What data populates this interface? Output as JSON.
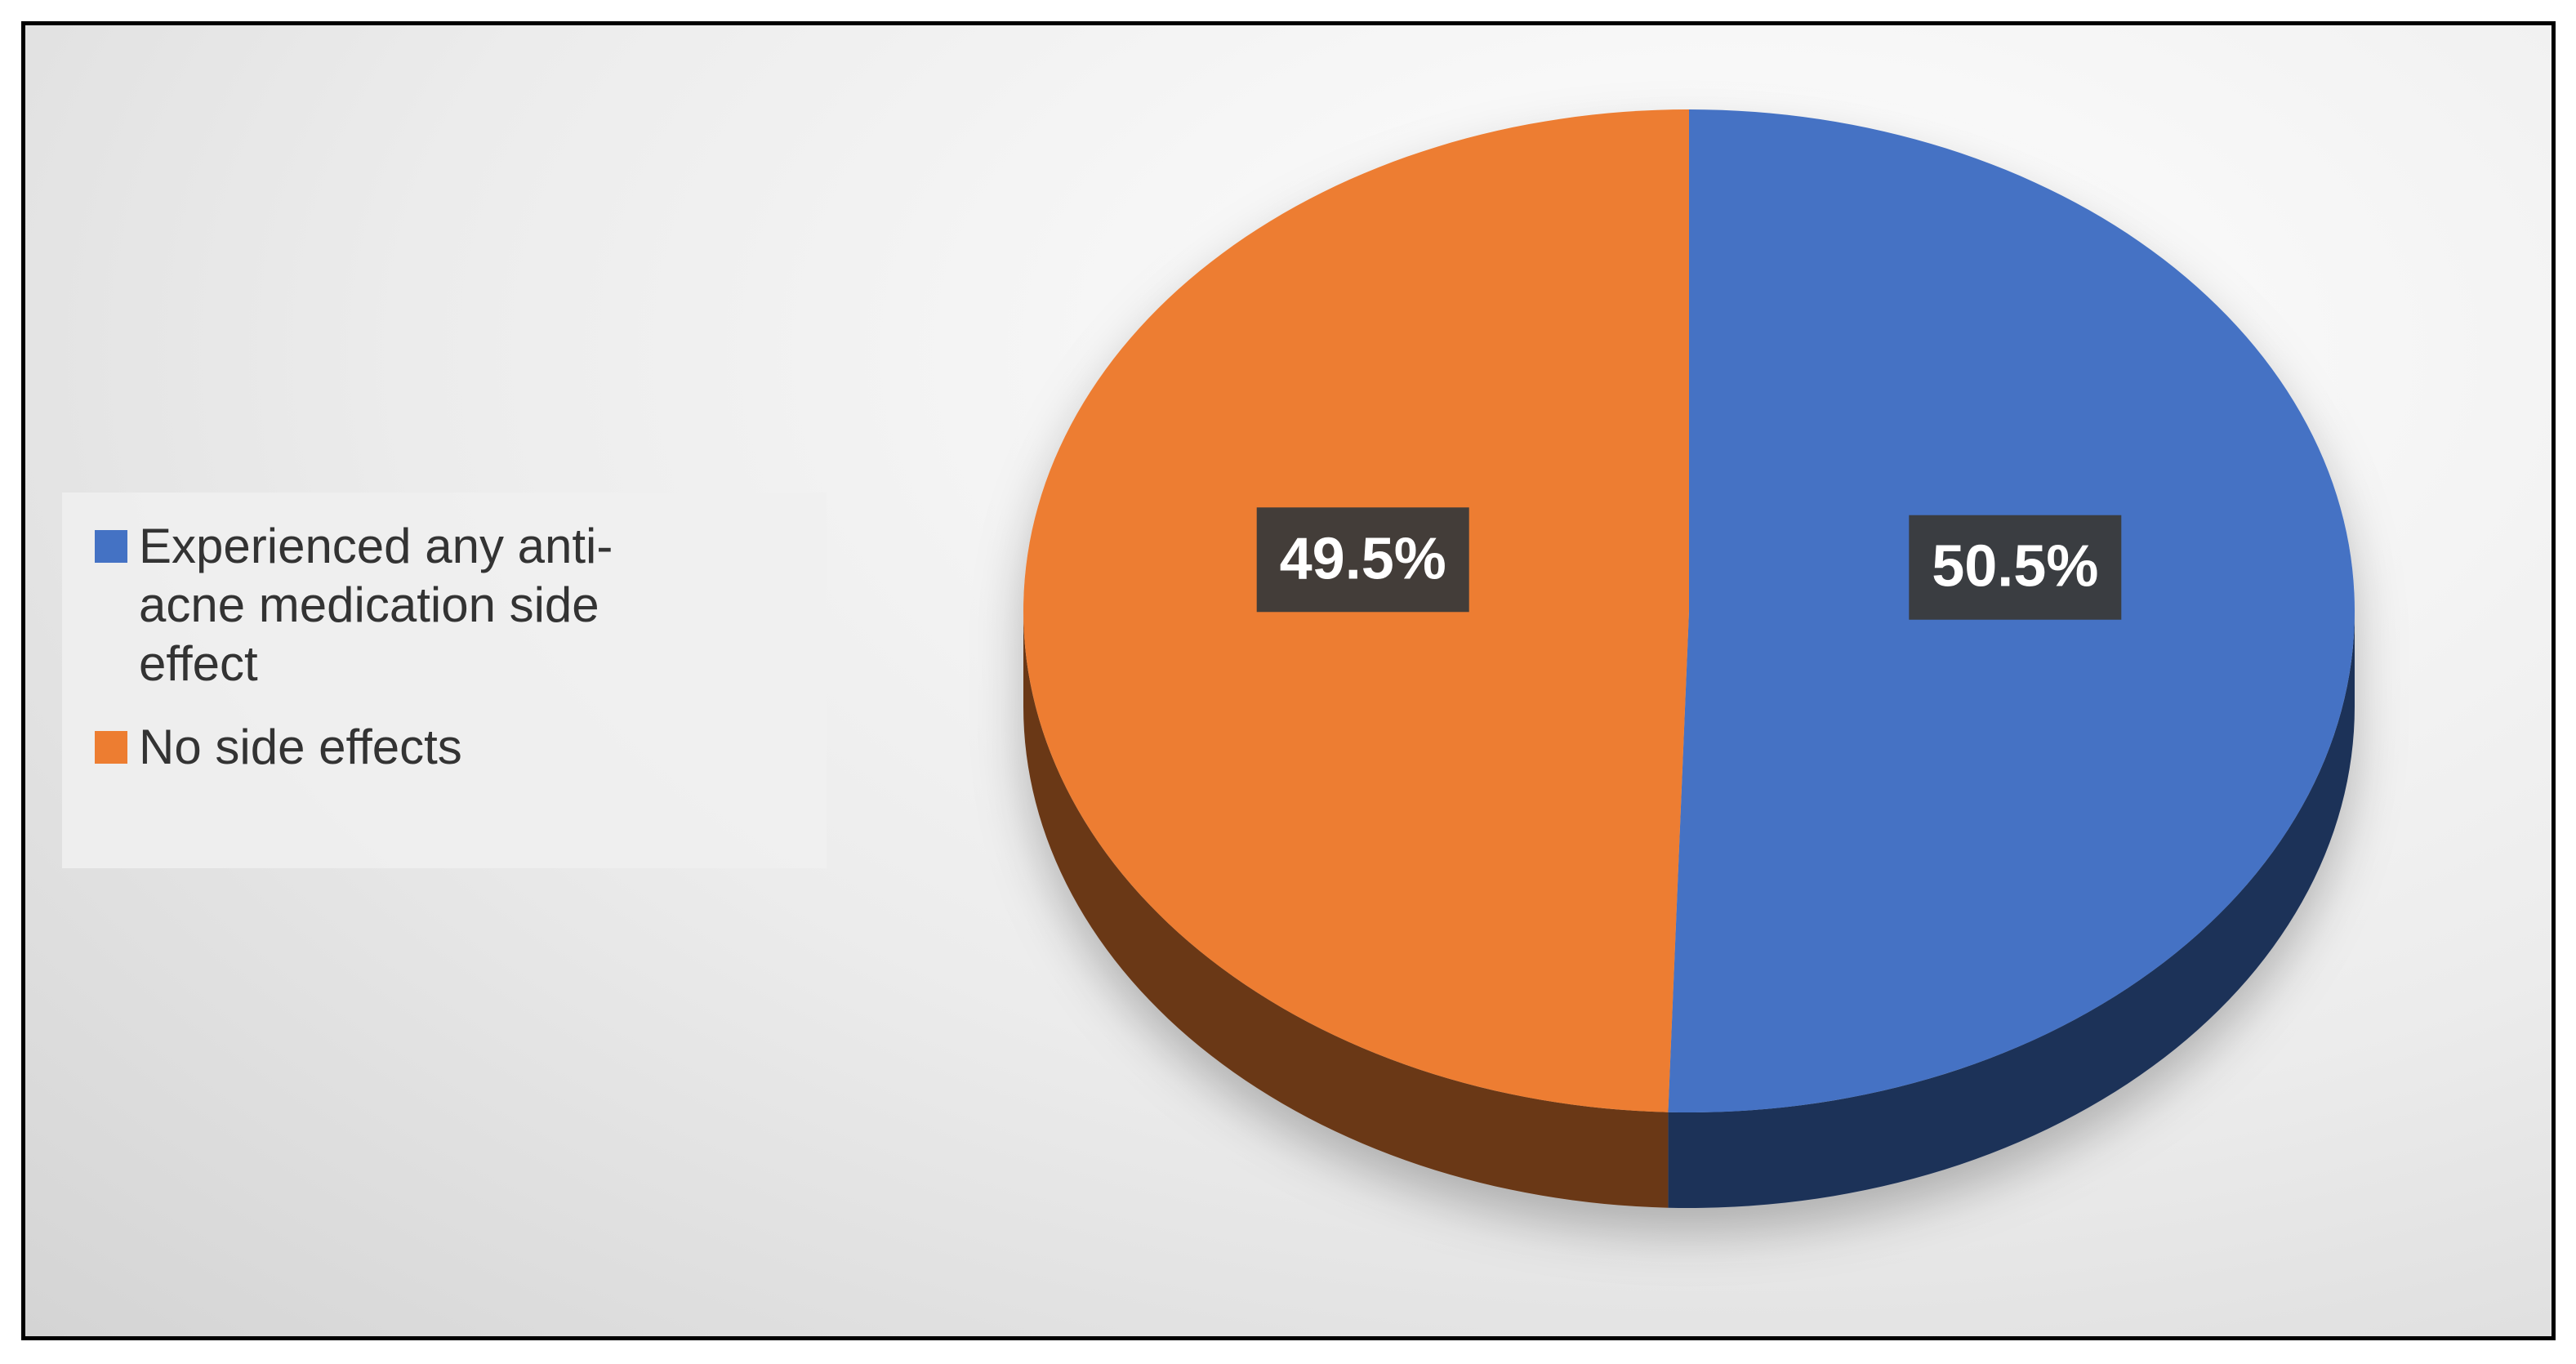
{
  "chart_data": {
    "type": "pie",
    "categories": [
      "Experienced any anti-acne medication side effect",
      "No side effects"
    ],
    "values": [
      50.5,
      49.5
    ],
    "value_labels": [
      "50.5%",
      "49.5%"
    ],
    "colors": [
      "#4472c4",
      "#ed7d31"
    ]
  }
}
